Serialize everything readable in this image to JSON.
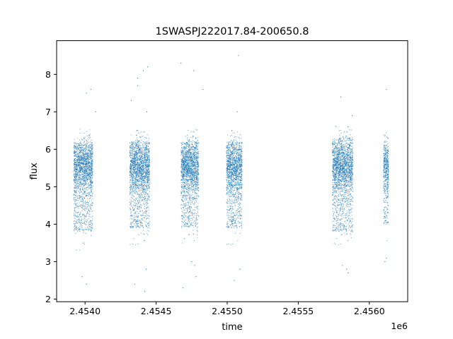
{
  "chart_data": {
    "type": "scatter",
    "title": "1SWASPJ222017.84-200650.8",
    "xlabel": "time",
    "ylabel": "flux",
    "x_offset_label": "1e6",
    "xlim": [
      2453750,
      2456220
    ],
    "ylim": [
      1.93,
      8.9
    ],
    "x_ticks": [
      2453950,
      2454450,
      2454950,
      2455450,
      2455950
    ],
    "x_tick_labels": [
      "2.4540",
      "2.4545",
      "2.4550",
      "2.4555",
      "2.4560"
    ],
    "y_ticks": [
      2,
      3,
      4,
      5,
      6,
      7,
      8
    ],
    "y_tick_labels": [
      "2",
      "3",
      "4",
      "5",
      "6",
      "7",
      "8"
    ],
    "grid": false,
    "legend": "none",
    "marker_color": "#1f77b4",
    "series": [
      {
        "name": "",
        "observing_seasons": [
          {
            "x_range": [
              2453870,
              2454005
            ],
            "flux_range": [
              3.8,
              6.2
            ]
          },
          {
            "x_range": [
              2454265,
              2454405
            ],
            "flux_range": [
              3.9,
              6.2
            ]
          },
          {
            "x_range": [
              2454625,
              2454750
            ],
            "flux_range": [
              3.9,
              6.2
            ]
          },
          {
            "x_range": [
              2454945,
              2455055
            ],
            "flux_range": [
              3.9,
              6.2
            ]
          },
          {
            "x_range": [
              2455690,
              2455835
            ],
            "flux_range": [
              3.8,
              6.3
            ]
          },
          {
            "x_range": [
              2456050,
              2456085
            ],
            "flux_range": [
              4.0,
              6.1
            ]
          }
        ],
        "outliers": [
          {
            "x": 2453960,
            "y": 7.5
          },
          {
            "x": 2453990,
            "y": 7.6
          },
          {
            "x": 2453960,
            "y": 2.4
          },
          {
            "x": 2453930,
            "y": 2.6
          },
          {
            "x": 2454025,
            "y": 7.0
          },
          {
            "x": 2454275,
            "y": 7.3
          },
          {
            "x": 2454320,
            "y": 7.9
          },
          {
            "x": 2454320,
            "y": 7.7
          },
          {
            "x": 2454360,
            "y": 8.1
          },
          {
            "x": 2454390,
            "y": 8.2
          },
          {
            "x": 2454385,
            "y": 7.0
          },
          {
            "x": 2454370,
            "y": 2.2
          },
          {
            "x": 2454380,
            "y": 2.8
          },
          {
            "x": 2454300,
            "y": 2.4
          },
          {
            "x": 2454625,
            "y": 8.3
          },
          {
            "x": 2454715,
            "y": 8.1
          },
          {
            "x": 2454780,
            "y": 7.6
          },
          {
            "x": 2454640,
            "y": 2.3
          },
          {
            "x": 2454700,
            "y": 3.0
          },
          {
            "x": 2454720,
            "y": 2.9
          },
          {
            "x": 2454730,
            "y": 2.6
          },
          {
            "x": 2455030,
            "y": 8.5
          },
          {
            "x": 2455020,
            "y": 7.0
          },
          {
            "x": 2455000,
            "y": 2.5
          },
          {
            "x": 2455040,
            "y": 2.8
          },
          {
            "x": 2455750,
            "y": 7.4
          },
          {
            "x": 2455800,
            "y": 6.6
          },
          {
            "x": 2455830,
            "y": 6.9
          },
          {
            "x": 2455760,
            "y": 2.9
          },
          {
            "x": 2455790,
            "y": 2.8
          },
          {
            "x": 2455800,
            "y": 2.7
          },
          {
            "x": 2456070,
            "y": 7.6
          },
          {
            "x": 2456070,
            "y": 3.1
          },
          {
            "x": 2456060,
            "y": 3.0
          }
        ]
      }
    ]
  }
}
